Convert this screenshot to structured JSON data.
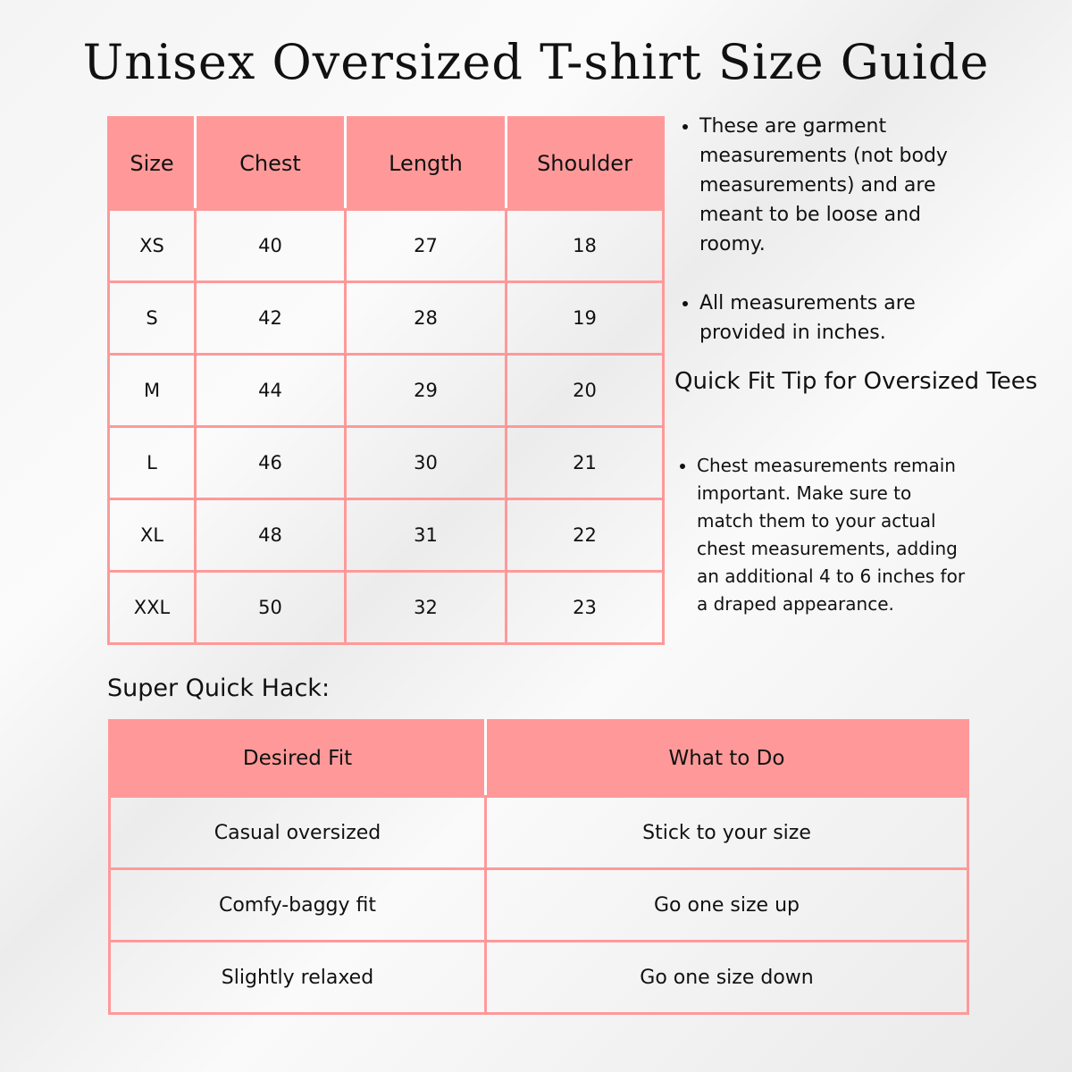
{
  "title": "Unisex Oversized T-shirt Size Guide",
  "size_table": {
    "headers": [
      "Size",
      "Chest",
      "Length",
      "Shoulder"
    ],
    "rows": [
      [
        "XS",
        "40",
        "27",
        "18"
      ],
      [
        "S",
        "42",
        "28",
        "19"
      ],
      [
        "M",
        "44",
        "29",
        "20"
      ],
      [
        "L",
        "46",
        "30",
        "21"
      ],
      [
        "XL",
        "48",
        "31",
        "22"
      ],
      [
        "XXL",
        "50",
        "32",
        "23"
      ]
    ]
  },
  "notes": [
    "These are garment measurements (not body measurements) and are meant to be loose and roomy.",
    "All measurements are provided in inches."
  ],
  "tip": {
    "title": "Quick Fit Tip for Oversized Tees",
    "text": "Chest measurements remain important. Make sure to match them to your actual chest measurements, adding an additional 4 to 6 inches for a draped appearance."
  },
  "hack": {
    "title": "Super Quick Hack:",
    "headers": [
      "Desired Fit",
      "What to Do"
    ],
    "rows": [
      [
        "Casual oversized",
        "Stick to your size"
      ],
      [
        "Comfy-baggy fit",
        "Go one size up"
      ],
      [
        "Slightly relaxed",
        "Go one size down"
      ]
    ]
  },
  "colors": {
    "accent": "#ff9999"
  }
}
